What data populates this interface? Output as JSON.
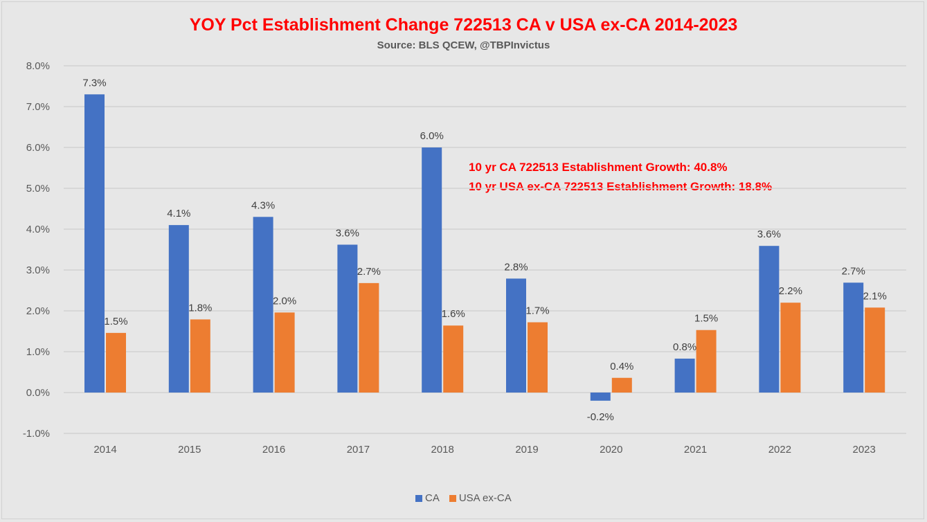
{
  "chart_data": {
    "type": "bar",
    "title": "YOY Pct Establishment Change 722513 CA v USA ex-CA 2014-2023",
    "subtitle": "Source: BLS QCEW, @TBPInvictus",
    "categories": [
      "2014",
      "2015",
      "2016",
      "2017",
      "2018",
      "2019",
      "2020",
      "2021",
      "2022",
      "2023"
    ],
    "series": [
      {
        "name": "CA",
        "color": "#4472c4",
        "values": [
          7.3,
          4.1,
          4.3,
          3.62,
          6.0,
          2.79,
          -0.2,
          0.83,
          3.59,
          2.69
        ],
        "labels": [
          "7.3%",
          "4.1%",
          "4.3%",
          "3.6%",
          "6.0%",
          "2.8%",
          "-0.2%",
          "0.8%",
          "3.6%",
          "2.7%"
        ]
      },
      {
        "name": "USA ex-CA",
        "color": "#ed7d31",
        "values": [
          1.46,
          1.79,
          1.96,
          2.68,
          1.64,
          1.72,
          0.36,
          1.53,
          2.2,
          2.08
        ],
        "labels": [
          "1.5%",
          "1.8%",
          "2.0%",
          "2.7%",
          "1.6%",
          "1.7%",
          "0.4%",
          "1.5%",
          "2.2%",
          "2.1%"
        ]
      }
    ],
    "ylim": [
      -1.0,
      8.0
    ],
    "yticks": [
      "-1.0%",
      "0.0%",
      "1.0%",
      "2.0%",
      "3.0%",
      "4.0%",
      "5.0%",
      "6.0%",
      "7.0%",
      "8.0%"
    ],
    "ytick_values": [
      -1,
      0,
      1,
      2,
      3,
      4,
      5,
      6,
      7,
      8
    ],
    "grid": true,
    "legend": "bottom",
    "annotations": [
      "10 yr CA 722513 Establishment Growth: 40.8%",
      "10 yr USA ex-CA 722513 Establishment Growth: 18.8%"
    ],
    "title_color": "#ff0000"
  }
}
